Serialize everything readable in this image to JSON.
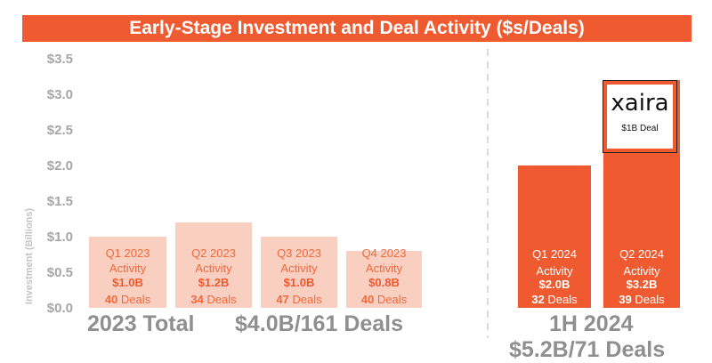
{
  "chart_data": {
    "type": "bar",
    "title": "Early-Stage Investment and Deal Activity ($s/Deals)",
    "ylabel": "Investment (Billions)",
    "ylim": [
      0,
      3.5
    ],
    "yticks": [
      "$0.0",
      "$0.5",
      "$1.0",
      "$1.5",
      "$2.0",
      "$2.5",
      "$3.0",
      "$3.5"
    ],
    "bars": [
      {
        "period": "Q1 2023",
        "activity": "Activity",
        "value": 1.0,
        "value_label": "$1.0B",
        "deals": 40,
        "deals_word": "Deals",
        "group": "2023"
      },
      {
        "period": "Q2 2023",
        "activity": "Activity",
        "value": 1.2,
        "value_label": "$1.2B",
        "deals": 34,
        "deals_word": "Deals",
        "group": "2023"
      },
      {
        "period": "Q3 2023",
        "activity": "Activity",
        "value": 1.0,
        "value_label": "$1.0B",
        "deals": 47,
        "deals_word": "Deals",
        "group": "2023"
      },
      {
        "period": "Q4 2023",
        "activity": "Activity",
        "value": 0.8,
        "value_label": "$0.8B",
        "deals": 40,
        "deals_word": "Deals",
        "group": "2023"
      },
      {
        "period": "Q1 2024",
        "activity": "Activity",
        "value": 2.0,
        "value_label": "$2.0B",
        "deals": 32,
        "deals_word": "Deals",
        "group": "2024"
      },
      {
        "period": "Q2 2024",
        "activity": "Activity",
        "value": 3.2,
        "value_label": "$3.2B",
        "deals": 39,
        "deals_word": "Deals",
        "group": "2024"
      }
    ],
    "annotation": {
      "logo_text": "xaira",
      "caption": "$1B Deal"
    },
    "summary_2023": {
      "label": "2023 Total",
      "value": "$4.0B/161 Deals"
    },
    "summary_2024": {
      "label": "1H 2024",
      "value": "$5.2B/71 Deals"
    }
  },
  "colors": {
    "accent": "#ef5a30",
    "light": "#f9cfc1",
    "axis_text": "#a6a6a6"
  }
}
